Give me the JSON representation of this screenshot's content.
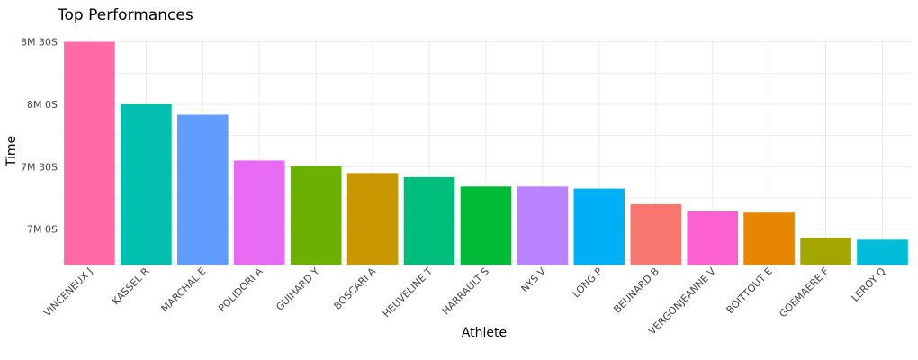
{
  "chart_data": {
    "type": "bar",
    "title": "Top Performances",
    "xlabel": "Athlete",
    "ylabel": "Time",
    "ylim": [
      403,
      512
    ],
    "yticks": [
      {
        "value": 420,
        "label": "7M 0S"
      },
      {
        "value": 450,
        "label": "7M 30S"
      },
      {
        "value": 480,
        "label": "8M 0S"
      },
      {
        "value": 510,
        "label": "8M 30S"
      }
    ],
    "grid": true,
    "legend": "none",
    "categories": [
      "VINCENEUX J",
      "KASSEL R",
      "MARCHAL E",
      "POLIDORI A",
      "GUIHARD Y",
      "BOSCARI A",
      "HEUVELINE T",
      "HARRAULT S",
      "NYS V",
      "LONG P",
      "BEUNARD B",
      "VERGONJEANNE V",
      "BOITTOUT E",
      "GOEMAERE F",
      "LEROY Q"
    ],
    "values": [
      510,
      480,
      475,
      453,
      450.5,
      447,
      445,
      440.5,
      440.5,
      439.5,
      432,
      428.5,
      428,
      416,
      415
    ],
    "colors": [
      "#FF69A6",
      "#00BFAF",
      "#619CFF",
      "#E76BF3",
      "#6BB100",
      "#C99800",
      "#00BD7C",
      "#00BA38",
      "#B983FF",
      "#00B0F6",
      "#F8766D",
      "#FD61D1",
      "#E58700",
      "#A3A500",
      "#00BCD8"
    ]
  }
}
